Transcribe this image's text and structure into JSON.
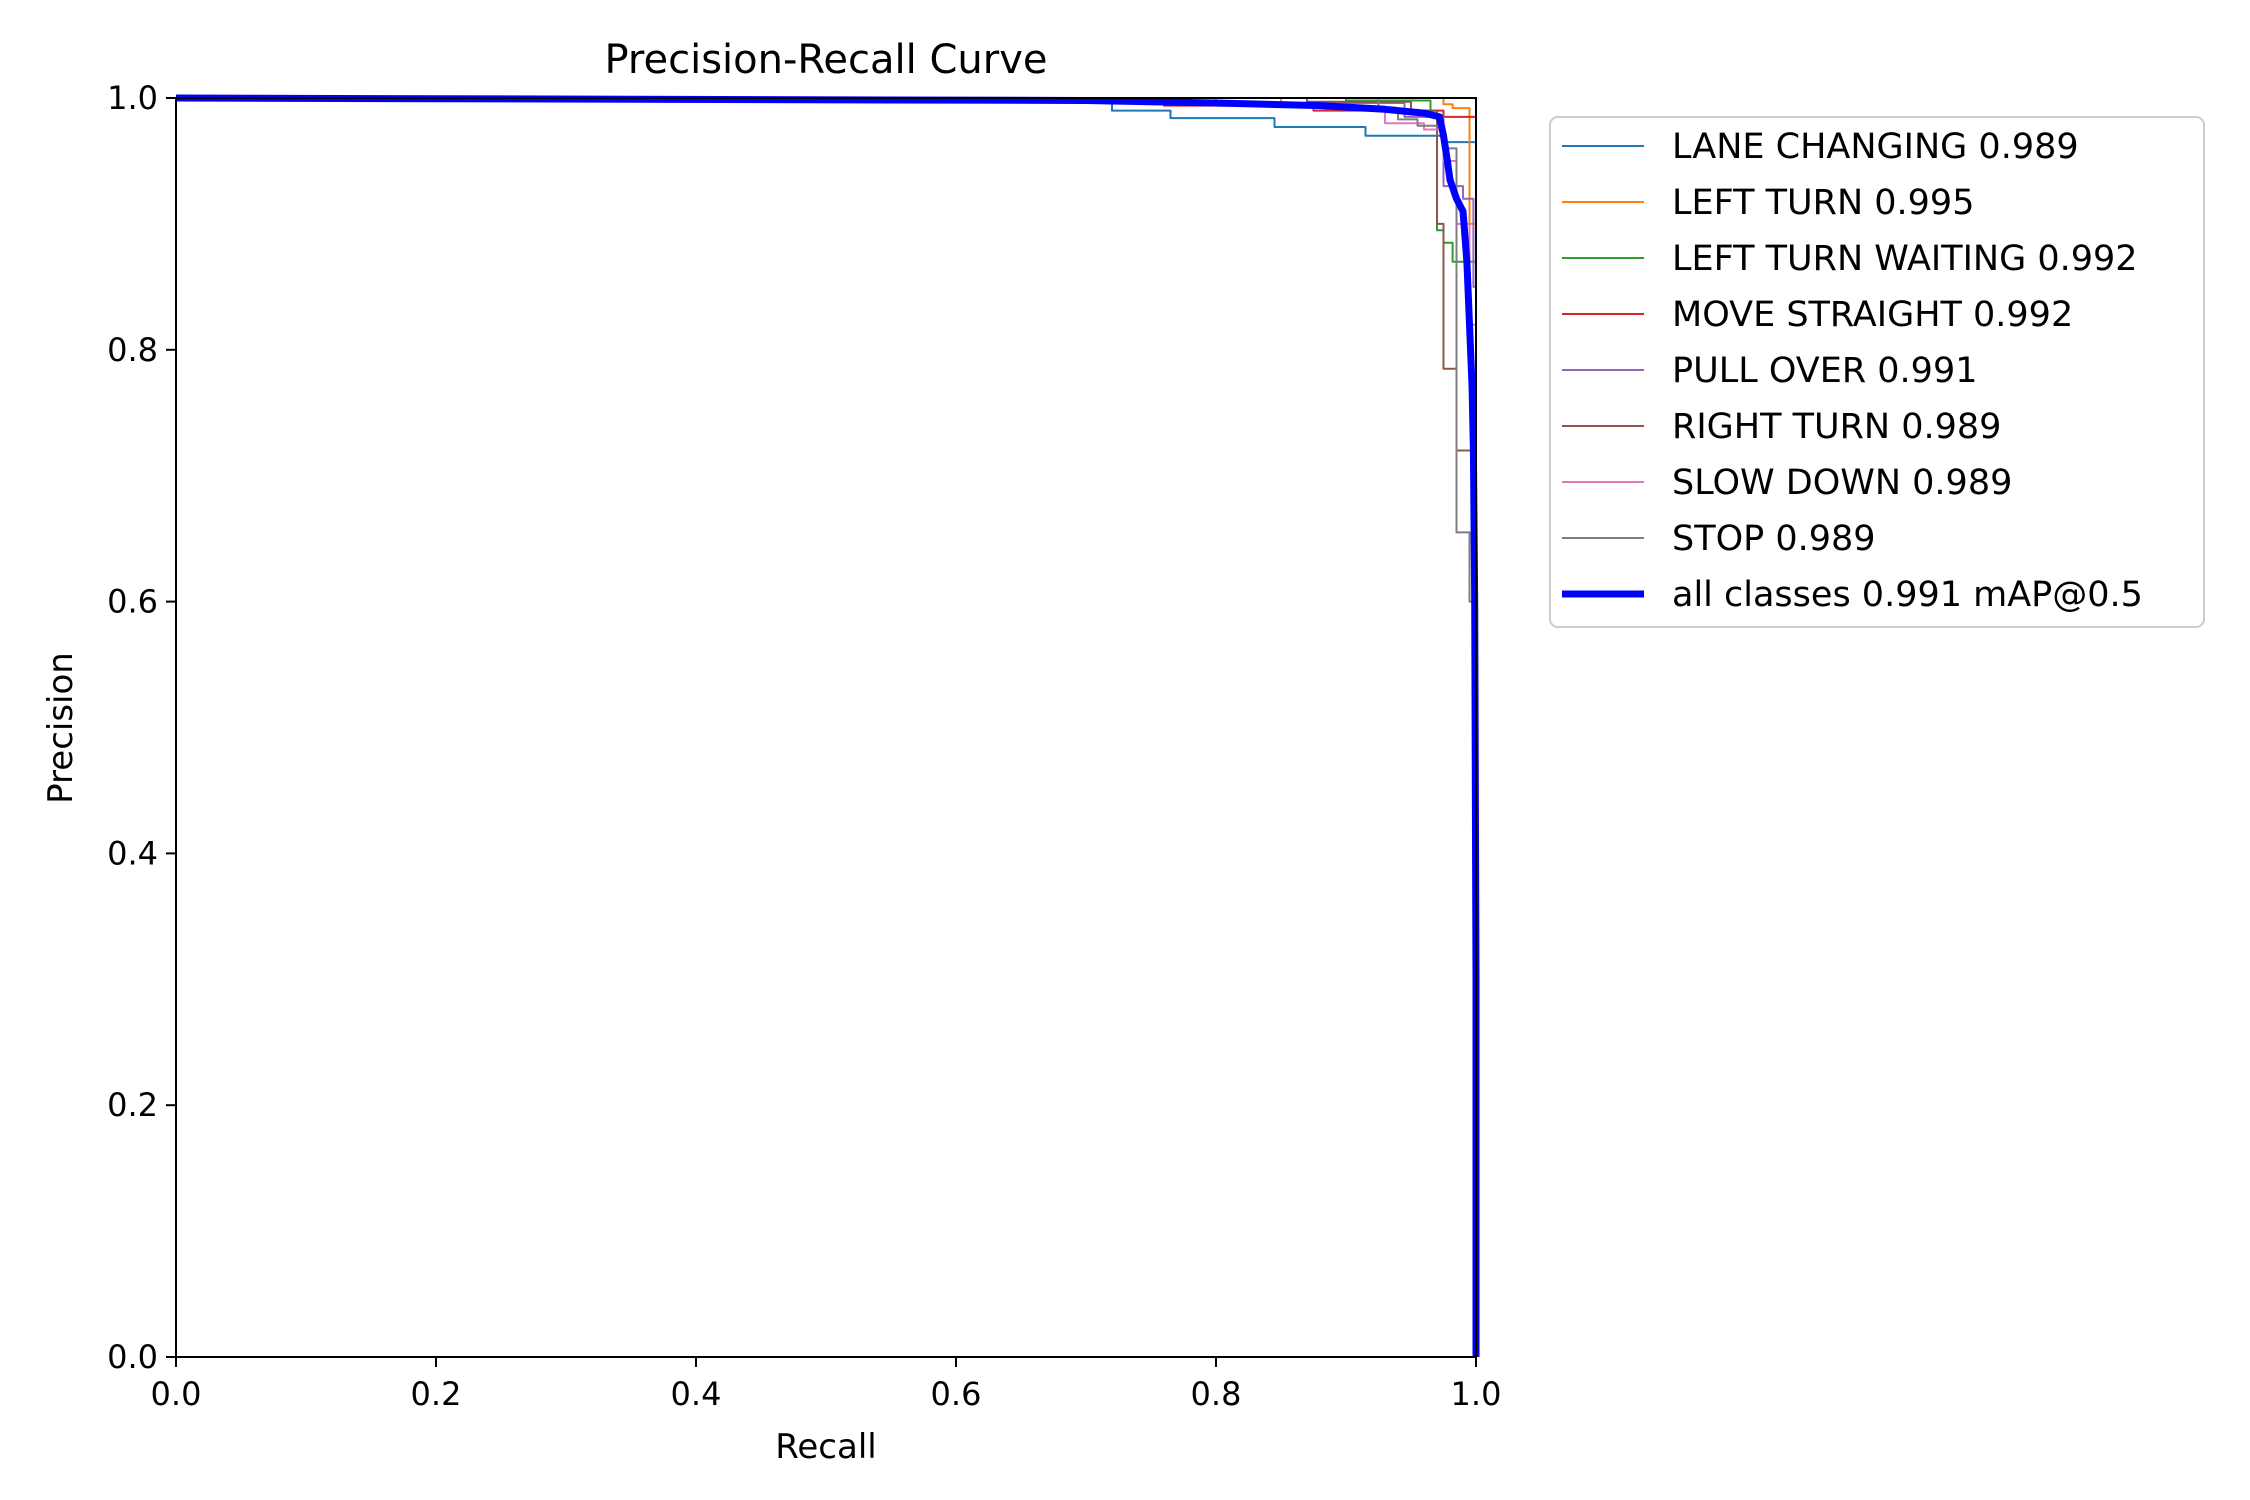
{
  "chart_data": {
    "type": "line",
    "title": "Precision-Recall Curve",
    "xlabel": "Recall",
    "ylabel": "Precision",
    "xlim": [
      0,
      1
    ],
    "ylim": [
      0,
      1
    ],
    "xticks": [
      "0.0",
      "0.2",
      "0.4",
      "0.6",
      "0.8",
      "1.0"
    ],
    "yticks": [
      "0.0",
      "0.2",
      "0.4",
      "0.6",
      "0.8",
      "1.0"
    ],
    "grid": false,
    "legend_position": "outside-upper-right",
    "series": [
      {
        "name": "LANE CHANGING 0.989",
        "color": "#1f77b4",
        "line_width": "thin",
        "points": [
          [
            0,
            1.0
          ],
          [
            0.72,
            1.0
          ],
          [
            0.72,
            0.99
          ],
          [
            0.765,
            0.99
          ],
          [
            0.765,
            0.984
          ],
          [
            0.845,
            0.984
          ],
          [
            0.845,
            0.977
          ],
          [
            0.915,
            0.977
          ],
          [
            0.915,
            0.97
          ],
          [
            0.975,
            0.97
          ],
          [
            0.975,
            0.965
          ],
          [
            1.0,
            0.965
          ],
          [
            1.0,
            0.0
          ]
        ]
      },
      {
        "name": "LEFT TURN 0.995",
        "color": "#ff7f0e",
        "line_width": "thin",
        "points": [
          [
            0,
            1.0
          ],
          [
            0.975,
            1.0
          ],
          [
            0.975,
            0.995
          ],
          [
            0.982,
            0.995
          ],
          [
            0.982,
            0.992
          ],
          [
            0.995,
            0.992
          ],
          [
            0.995,
            0.9
          ],
          [
            1.0,
            0.9
          ],
          [
            1.0,
            0.0
          ]
        ]
      },
      {
        "name": "LEFT TURN WAITING 0.992",
        "color": "#2ca02c",
        "line_width": "thin",
        "points": [
          [
            0,
            1.0
          ],
          [
            0.9,
            1.0
          ],
          [
            0.9,
            0.998
          ],
          [
            0.965,
            0.998
          ],
          [
            0.965,
            0.99
          ],
          [
            0.97,
            0.99
          ],
          [
            0.97,
            0.895
          ],
          [
            0.975,
            0.895
          ],
          [
            0.975,
            0.885
          ],
          [
            0.982,
            0.885
          ],
          [
            0.982,
            0.87
          ],
          [
            1.0,
            0.87
          ],
          [
            1.0,
            0.0
          ]
        ]
      },
      {
        "name": "MOVE STRAIGHT 0.992",
        "color": "#d62728",
        "line_width": "thin",
        "points": [
          [
            0,
            1.0
          ],
          [
            0.76,
            1.0
          ],
          [
            0.76,
            0.994
          ],
          [
            0.875,
            0.994
          ],
          [
            0.875,
            0.99
          ],
          [
            0.975,
            0.99
          ],
          [
            0.975,
            0.985
          ],
          [
            1.0,
            0.985
          ],
          [
            1.0,
            0.0
          ]
        ]
      },
      {
        "name": "PULL OVER 0.991",
        "color": "#9467bd",
        "line_width": "thin",
        "points": [
          [
            0,
            1.0
          ],
          [
            0.8,
            1.0
          ],
          [
            0.8,
            0.996
          ],
          [
            0.945,
            0.996
          ],
          [
            0.945,
            0.985
          ],
          [
            0.975,
            0.985
          ],
          [
            0.975,
            0.93
          ],
          [
            0.99,
            0.93
          ],
          [
            0.99,
            0.92
          ],
          [
            0.998,
            0.92
          ],
          [
            0.998,
            0.85
          ],
          [
            1.0,
            0.85
          ],
          [
            1.0,
            0.0
          ]
        ]
      },
      {
        "name": "RIGHT TURN 0.989",
        "color": "#8c564b",
        "line_width": "thin",
        "points": [
          [
            0,
            1.0
          ],
          [
            0.87,
            1.0
          ],
          [
            0.87,
            0.997
          ],
          [
            0.95,
            0.997
          ],
          [
            0.95,
            0.99
          ],
          [
            0.97,
            0.99
          ],
          [
            0.97,
            0.9
          ],
          [
            0.975,
            0.9
          ],
          [
            0.975,
            0.785
          ],
          [
            0.985,
            0.785
          ],
          [
            0.985,
            0.72
          ],
          [
            1.0,
            0.72
          ],
          [
            1.0,
            0.0
          ]
        ]
      },
      {
        "name": "SLOW DOWN 0.989",
        "color": "#e377c2",
        "line_width": "thin",
        "points": [
          [
            0,
            1.0
          ],
          [
            0.85,
            1.0
          ],
          [
            0.85,
            0.993
          ],
          [
            0.93,
            0.993
          ],
          [
            0.93,
            0.98
          ],
          [
            0.96,
            0.98
          ],
          [
            0.96,
            0.975
          ],
          [
            0.975,
            0.975
          ],
          [
            0.975,
            0.95
          ],
          [
            0.985,
            0.95
          ],
          [
            0.985,
            0.9
          ],
          [
            0.995,
            0.9
          ],
          [
            0.995,
            0.82
          ],
          [
            1.0,
            0.82
          ],
          [
            1.0,
            0.0
          ]
        ]
      },
      {
        "name": "STOP 0.989",
        "color": "#7f7f7f",
        "line_width": "thin",
        "points": [
          [
            0,
            1.0
          ],
          [
            0.925,
            1.0
          ],
          [
            0.925,
            0.99
          ],
          [
            0.94,
            0.99
          ],
          [
            0.94,
            0.983
          ],
          [
            0.955,
            0.983
          ],
          [
            0.955,
            0.978
          ],
          [
            0.975,
            0.978
          ],
          [
            0.975,
            0.96
          ],
          [
            0.985,
            0.96
          ],
          [
            0.985,
            0.655
          ],
          [
            0.995,
            0.655
          ],
          [
            0.995,
            0.6
          ],
          [
            1.0,
            0.6
          ],
          [
            1.0,
            0.0
          ]
        ]
      },
      {
        "name": "all classes 0.991 mAP@0.5",
        "color": "#0000ff",
        "line_width": "thick",
        "points": [
          [
            0,
            1.0
          ],
          [
            0.7,
            0.998
          ],
          [
            0.8,
            0.996
          ],
          [
            0.88,
            0.994
          ],
          [
            0.93,
            0.991
          ],
          [
            0.96,
            0.988
          ],
          [
            0.972,
            0.985
          ],
          [
            0.975,
            0.97
          ],
          [
            0.978,
            0.95
          ],
          [
            0.98,
            0.935
          ],
          [
            0.985,
            0.92
          ],
          [
            0.99,
            0.91
          ],
          [
            0.993,
            0.87
          ],
          [
            0.995,
            0.82
          ],
          [
            0.997,
            0.77
          ],
          [
            0.998,
            0.72
          ],
          [
            0.999,
            0.6
          ],
          [
            1.0,
            0.3
          ],
          [
            1.0,
            0.0
          ]
        ]
      }
    ]
  }
}
